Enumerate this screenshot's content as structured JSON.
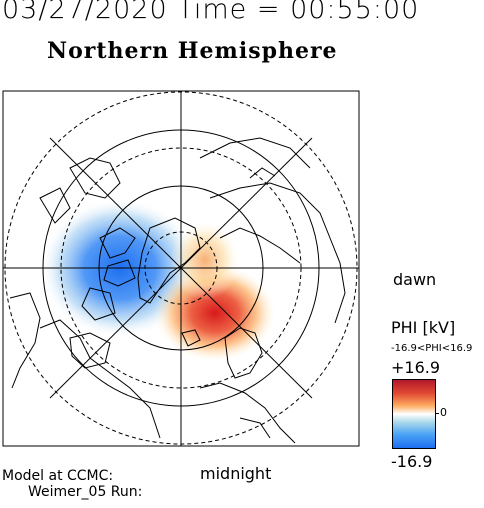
{
  "header": {
    "datetime": "03/27/2020 Time = 00:55:00",
    "hemisphere": "Northern Hemisphere"
  },
  "map": {
    "projection": "polar stereographic, geographic pole centered",
    "lat_circles_solid": [
      "70N",
      "50N"
    ],
    "lat_circles_dashed": [
      "80N",
      "60N",
      "40N"
    ],
    "meridians_spacing_deg": 45,
    "labels": {
      "dawn": "dawn",
      "midnight": "midnight"
    },
    "potential_cells": [
      {
        "sign": "negative",
        "region": "dusk/pre-midnight sector",
        "color": "#1e6ff0"
      },
      {
        "sign": "positive",
        "region": "post-midnight/dawn sector",
        "color": "#d7191c"
      }
    ]
  },
  "colorbar": {
    "title": "PHI [kV]",
    "range_text": "-16.9<PHI<16.9",
    "max_label": "+16.9",
    "mid_label": "0",
    "min_label": "-16.9",
    "max": 16.9,
    "min": -16.9,
    "colors": [
      "#b2182b",
      "#fdae61",
      "#ffffff",
      "#abd9e9",
      "#1e6ff0"
    ]
  },
  "footer": {
    "line1": "Model at CCMC:",
    "line2": "Weimer_05 Run:"
  }
}
